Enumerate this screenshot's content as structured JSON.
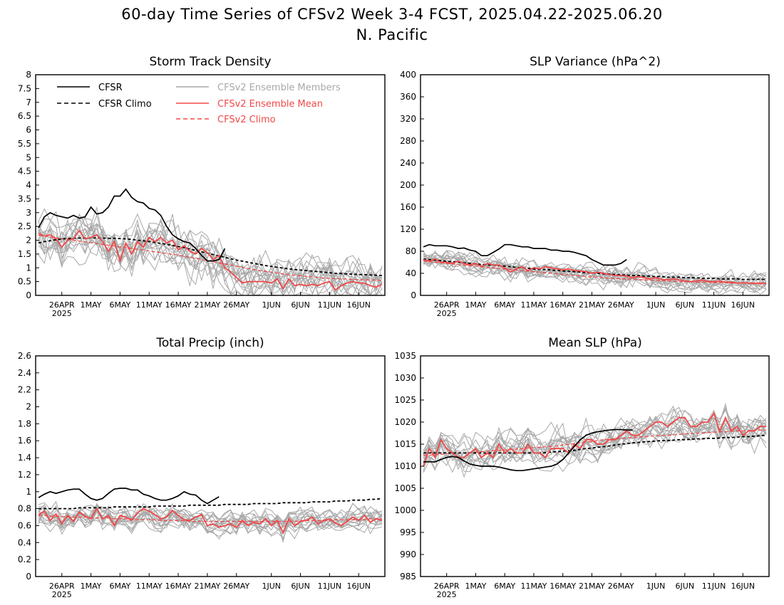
{
  "figure": {
    "title": "60-day Time Series of CFSv2 Week 3-4 FCST, 2025.04.22-2025.06.20",
    "subtitle": "N. Pacific"
  },
  "legend": {
    "cfsr": "CFSR",
    "cfsr_climo": "CFSR Climo",
    "members": "CFSv2 Ensemble Members",
    "ens_mean": "CFSv2 Ensemble Mean",
    "cfsv2_climo": "CFSv2 Climo"
  },
  "colors": {
    "cfsr": "#000000",
    "members": "#a8a8a8",
    "ens_mean": "#f04848",
    "climo_red": "#f04848"
  },
  "x_axis": {
    "ticks": [
      {
        "day": 4,
        "label": "26APR"
      },
      {
        "day": 9,
        "label": "1MAY"
      },
      {
        "day": 14,
        "label": "6MAY"
      },
      {
        "day": 19,
        "label": "11MAY"
      },
      {
        "day": 24,
        "label": "16MAY"
      },
      {
        "day": 29,
        "label": "21MAY"
      },
      {
        "day": 34,
        "label": "26MAY"
      },
      {
        "day": 40,
        "label": "1JUN"
      },
      {
        "day": 45,
        "label": "6JUN"
      },
      {
        "day": 50,
        "label": "11JUN"
      },
      {
        "day": 55,
        "label": "16JUN"
      }
    ],
    "year_label": "2025"
  },
  "chart_data": [
    {
      "type": "line",
      "title": "Storm Track Density",
      "ylim": [
        0,
        8
      ],
      "yticks": [
        "0",
        "0.5",
        "1",
        "1.5",
        "2",
        "2.5",
        "3",
        "3.5",
        "4",
        "4.5",
        "5",
        "5.5",
        "6",
        "6.5",
        "7",
        "7.5",
        "8"
      ],
      "cfsr": [
        2.45,
        2.85,
        3.0,
        2.9,
        2.85,
        2.8,
        2.9,
        2.8,
        2.85,
        3.2,
        2.95,
        3.0,
        3.2,
        3.6,
        3.6,
        3.85,
        3.55,
        3.4,
        3.35,
        3.15,
        3.1,
        2.9,
        2.5,
        2.2,
        2.05,
        1.95,
        1.9,
        1.7,
        1.45,
        1.25,
        1.25,
        1.3,
        1.7
      ],
      "cfsr_climo": [
        1.9,
        1.95,
        1.98,
        2.02,
        2.05,
        2.06,
        2.07,
        2.08,
        2.08,
        2.08,
        2.08,
        2.08,
        2.07,
        2.07,
        2.06,
        2.05,
        2.03,
        2.0,
        1.98,
        1.95,
        1.92,
        1.88,
        1.85,
        1.81,
        1.77,
        1.73,
        1.68,
        1.63,
        1.58,
        1.53,
        1.48,
        1.43,
        1.38,
        1.33,
        1.28,
        1.24,
        1.2,
        1.16,
        1.12,
        1.08,
        1.05,
        1.02,
        0.99,
        0.96,
        0.94,
        0.92,
        0.9,
        0.88,
        0.86,
        0.84,
        0.82,
        0.8,
        0.79,
        0.78,
        0.77,
        0.76,
        0.75,
        0.74,
        0.73,
        0.72
      ],
      "ens_mean": [
        2.25,
        2.15,
        2.2,
        2.05,
        1.75,
        2.0,
        2.05,
        2.35,
        2.05,
        2.1,
        2.2,
        1.95,
        1.6,
        1.95,
        1.25,
        1.9,
        1.5,
        1.95,
        1.75,
        2.1,
        1.95,
        2.1,
        1.9,
        2.0,
        1.65,
        1.8,
        1.6,
        1.5,
        1.7,
        1.55,
        1.3,
        1.45,
        1.0,
        0.85,
        0.65,
        0.45,
        0.5,
        0.5,
        0.5,
        0.5,
        0.45,
        0.6,
        0.25,
        0.6,
        0.35,
        0.4,
        0.35,
        0.4,
        0.35,
        0.45,
        0.5,
        0.2,
        0.35,
        0.45,
        0.5,
        0.45,
        0.45,
        0.35,
        0.3,
        0.4
      ],
      "cfsv2_climo": [
        2.18,
        2.15,
        2.12,
        2.09,
        2.06,
        2.03,
        2.0,
        1.97,
        1.94,
        1.91,
        1.88,
        1.85,
        1.82,
        1.79,
        1.76,
        1.73,
        1.7,
        1.67,
        1.64,
        1.61,
        1.58,
        1.55,
        1.52,
        1.49,
        1.46,
        1.42,
        1.38,
        1.34,
        1.3,
        1.26,
        1.22,
        1.18,
        1.14,
        1.1,
        1.06,
        1.02,
        0.98,
        0.94,
        0.9,
        0.87,
        0.84,
        0.81,
        0.78,
        0.75,
        0.73,
        0.71,
        0.69,
        0.67,
        0.65,
        0.63,
        0.62,
        0.61,
        0.6,
        0.59,
        0.58,
        0.57,
        0.56,
        0.56,
        0.55,
        0.55
      ],
      "members": {
        "count": 16,
        "spread": 0.55,
        "seed": 11,
        "step": 0.1
      }
    },
    {
      "type": "line",
      "title": "SLP Variance (hPa^2)",
      "ylim": [
        0,
        400
      ],
      "yticks": [
        "0",
        "40",
        "80",
        "120",
        "160",
        "200",
        "240",
        "280",
        "320",
        "360",
        "400"
      ],
      "cfsr": [
        88,
        92,
        90,
        90,
        90,
        88,
        85,
        86,
        82,
        80,
        72,
        72,
        78,
        84,
        92,
        92,
        90,
        88,
        88,
        85,
        85,
        85,
        82,
        82,
        80,
        80,
        78,
        75,
        72,
        65,
        60,
        55,
        55,
        55,
        58,
        65
      ],
      "cfsr_climo": [
        66,
        65,
        64,
        63,
        62,
        61,
        60,
        59,
        58,
        57,
        56,
        55,
        55,
        54,
        53,
        52,
        51,
        50,
        49,
        48,
        47,
        47,
        46,
        45,
        44,
        44,
        43,
        42,
        41,
        41,
        40,
        39,
        39,
        38,
        37,
        37,
        36,
        36,
        35,
        35,
        34,
        34,
        33,
        33,
        33,
        32,
        32,
        32,
        31,
        31,
        31,
        30,
        30,
        30,
        30,
        29,
        29,
        29,
        29,
        29
      ],
      "ens_mean": [
        65,
        62,
        66,
        60,
        60,
        58,
        62,
        58,
        55,
        58,
        52,
        58,
        55,
        55,
        50,
        42,
        48,
        52,
        45,
        50,
        48,
        52,
        50,
        48,
        46,
        48,
        45,
        44,
        43,
        40,
        42,
        40,
        38,
        36,
        36,
        35,
        32,
        34,
        32,
        30,
        32,
        29,
        28,
        30,
        28,
        26,
        25,
        26,
        28,
        25,
        25,
        26,
        24,
        24,
        22,
        23,
        22,
        22,
        22,
        22
      ],
      "cfsv2_climo": [
        62,
        61,
        60,
        59,
        58,
        57,
        56,
        55,
        54,
        53,
        52,
        51,
        50,
        49,
        48,
        47,
        46,
        45,
        44,
        43,
        42,
        41,
        40,
        39,
        38,
        37,
        36,
        35,
        34,
        33,
        33,
        32,
        31,
        31,
        30,
        30,
        29,
        29,
        28,
        28,
        27,
        27,
        26,
        26,
        25,
        25,
        25,
        24,
        24,
        24,
        23,
        23,
        23,
        22,
        22,
        22,
        22,
        21,
        21,
        21
      ],
      "members": {
        "count": 16,
        "spread": 12,
        "seed": 23,
        "step": 0.12
      }
    },
    {
      "type": "line",
      "title": "Total Precip (inch)",
      "ylim": [
        0,
        2.6
      ],
      "yticks": [
        "0",
        "0.2",
        "0.4",
        "0.6",
        "0.8",
        "1",
        "1.2",
        "1.4",
        "1.6",
        "1.8",
        "2",
        "2.2",
        "2.4",
        "2.6"
      ],
      "cfsr": [
        0.93,
        0.97,
        1.0,
        0.98,
        1.0,
        1.02,
        1.03,
        1.03,
        0.97,
        0.92,
        0.9,
        0.92,
        0.98,
        1.03,
        1.04,
        1.04,
        1.02,
        1.02,
        0.97,
        0.95,
        0.92,
        0.9,
        0.9,
        0.92,
        0.95,
        1.0,
        0.97,
        0.96,
        0.9,
        0.86,
        0.9,
        0.94
      ],
      "cfsr_climo": [
        0.8,
        0.8,
        0.8,
        0.8,
        0.8,
        0.8,
        0.8,
        0.81,
        0.81,
        0.81,
        0.81,
        0.81,
        0.81,
        0.82,
        0.82,
        0.82,
        0.82,
        0.82,
        0.82,
        0.82,
        0.83,
        0.83,
        0.83,
        0.83,
        0.83,
        0.83,
        0.84,
        0.84,
        0.84,
        0.84,
        0.84,
        0.84,
        0.85,
        0.85,
        0.85,
        0.85,
        0.85,
        0.86,
        0.86,
        0.86,
        0.86,
        0.86,
        0.87,
        0.87,
        0.87,
        0.87,
        0.87,
        0.88,
        0.88,
        0.88,
        0.88,
        0.89,
        0.89,
        0.89,
        0.9,
        0.9,
        0.9,
        0.91,
        0.91,
        0.92
      ],
      "ens_mean": [
        0.73,
        0.77,
        0.66,
        0.74,
        0.62,
        0.72,
        0.65,
        0.76,
        0.71,
        0.68,
        0.8,
        0.68,
        0.72,
        0.6,
        0.72,
        0.7,
        0.66,
        0.75,
        0.8,
        0.77,
        0.73,
        0.68,
        0.7,
        0.78,
        0.72,
        0.67,
        0.66,
        0.7,
        0.73,
        0.6,
        0.62,
        0.58,
        0.6,
        0.62,
        0.58,
        0.66,
        0.6,
        0.64,
        0.62,
        0.68,
        0.6,
        0.66,
        0.52,
        0.68,
        0.6,
        0.65,
        0.66,
        0.7,
        0.62,
        0.66,
        0.68,
        0.63,
        0.6,
        0.65,
        0.7,
        0.66,
        0.72,
        0.64,
        0.68,
        0.66
      ],
      "cfsv2_climo": [
        0.72,
        0.72,
        0.71,
        0.71,
        0.71,
        0.7,
        0.7,
        0.7,
        0.7,
        0.69,
        0.69,
        0.69,
        0.69,
        0.68,
        0.68,
        0.68,
        0.68,
        0.67,
        0.67,
        0.67,
        0.67,
        0.66,
        0.66,
        0.66,
        0.66,
        0.66,
        0.65,
        0.65,
        0.65,
        0.65,
        0.65,
        0.65,
        0.65,
        0.65,
        0.65,
        0.65,
        0.65,
        0.65,
        0.65,
        0.65,
        0.65,
        0.65,
        0.65,
        0.65,
        0.65,
        0.66,
        0.66,
        0.66,
        0.66,
        0.66,
        0.66,
        0.67,
        0.67,
        0.67,
        0.67,
        0.67,
        0.67,
        0.68,
        0.68,
        0.68
      ],
      "members": {
        "count": 16,
        "spread": 0.09,
        "seed": 37,
        "step": 0.1
      }
    },
    {
      "type": "line",
      "title": "Mean SLP (hPa)",
      "ylim": [
        985,
        1035
      ],
      "yticks": [
        "985",
        "990",
        "995",
        "1000",
        "1005",
        "1010",
        "1015",
        "1020",
        "1025",
        "1030",
        "1035"
      ],
      "cfsr": [
        1011,
        1011,
        1011,
        1011.5,
        1012,
        1012.2,
        1012,
        1011.2,
        1010.5,
        1010.2,
        1010,
        1010,
        1010,
        1009.8,
        1009.5,
        1009.2,
        1009,
        1009,
        1009.2,
        1009.4,
        1009.6,
        1009.8,
        1010,
        1010.5,
        1011.5,
        1013,
        1014.5,
        1016,
        1017,
        1017.5,
        1017.8,
        1018,
        1018.2,
        1018.3,
        1018.3,
        1018.2,
        1018.2
      ],
      "cfsr_climo": [
        1013,
        1013,
        1013,
        1013,
        1013,
        1013,
        1013,
        1013,
        1013,
        1013,
        1013,
        1013,
        1013,
        1013,
        1013,
        1013,
        1013,
        1013,
        1013,
        1013,
        1013,
        1013.1,
        1013.2,
        1013.3,
        1013.4,
        1013.5,
        1013.6,
        1013.8,
        1014,
        1014.1,
        1014.3,
        1014.4,
        1014.6,
        1014.8,
        1015,
        1015.1,
        1015.3,
        1015.4,
        1015.5,
        1015.6,
        1015.7,
        1015.8,
        1015.8,
        1015.9,
        1016,
        1016,
        1016.1,
        1016.2,
        1016.2,
        1016.3,
        1016.3,
        1016.4,
        1016.5,
        1016.5,
        1016.6,
        1016.7,
        1016.7,
        1016.8,
        1016.9,
        1017
      ],
      "ens_mean": [
        1010,
        1014,
        1012,
        1016,
        1014,
        1013,
        1012,
        1012,
        1013,
        1014,
        1012,
        1013,
        1012,
        1015,
        1013,
        1014,
        1013,
        1013,
        1015,
        1013,
        1013,
        1012,
        1014,
        1014,
        1014,
        1013,
        1015,
        1014,
        1016,
        1016,
        1015,
        1015,
        1016,
        1016,
        1017,
        1018,
        1017,
        1017,
        1018,
        1019,
        1020,
        1020,
        1019,
        1020,
        1021,
        1021,
        1019,
        1019,
        1020,
        1020,
        1022,
        1018,
        1021,
        1018,
        1019,
        1017,
        1018,
        1018,
        1019,
        1019
      ],
      "cfsv2_climo": [
        1012.5,
        1012.5,
        1012.6,
        1012.7,
        1012.8,
        1012.9,
        1013,
        1013,
        1013.1,
        1013.2,
        1013.3,
        1013.4,
        1013.5,
        1013.6,
        1013.7,
        1013.8,
        1013.9,
        1014,
        1014.1,
        1014.2,
        1014.3,
        1014.4,
        1014.5,
        1014.6,
        1014.8,
        1015,
        1015.1,
        1015.3,
        1015.5,
        1015.6,
        1015.8,
        1016,
        1016.1,
        1016.2,
        1016.3,
        1016.4,
        1016.5,
        1016.6,
        1016.7,
        1016.8,
        1016.9,
        1017,
        1017,
        1017.1,
        1017.2,
        1017.3,
        1017.4,
        1017.5,
        1017.5,
        1017.6,
        1017.7,
        1017.8,
        1017.8,
        1017.9,
        1018,
        1018,
        1018.1,
        1018.1,
        1018.2,
        1018.2
      ],
      "members": {
        "count": 16,
        "spread": 2.6,
        "seed": 53,
        "step": 0.1
      }
    }
  ]
}
